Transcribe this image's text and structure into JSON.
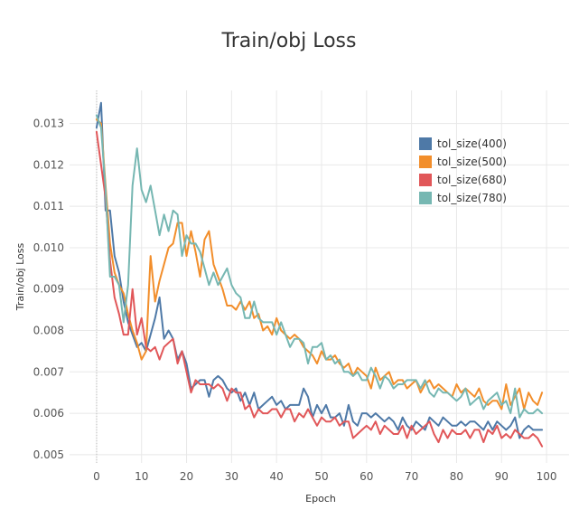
{
  "chart_data": {
    "type": "line",
    "title": "Train/obj Loss",
    "xlabel": "Epoch",
    "ylabel": "Train/obj Loss",
    "xlim": [
      -6,
      105
    ],
    "ylim": [
      0.0048,
      0.0138
    ],
    "xticks": [
      0,
      10,
      20,
      30,
      40,
      50,
      60,
      70,
      80,
      90,
      100
    ],
    "yticks": [
      0.005,
      0.006,
      0.007,
      0.008,
      0.009,
      0.01,
      0.011,
      0.012,
      0.013
    ],
    "ytick_labels": [
      "0.005",
      "0.006",
      "0.007",
      "0.008",
      "0.009",
      "0.010",
      "0.011",
      "0.012",
      "0.013"
    ],
    "grid": true,
    "legend_position": "top-right",
    "x": [
      0,
      1,
      2,
      3,
      4,
      5,
      6,
      7,
      8,
      9,
      10,
      11,
      12,
      13,
      14,
      15,
      16,
      17,
      18,
      19,
      20,
      21,
      22,
      23,
      24,
      25,
      26,
      27,
      28,
      29,
      30,
      31,
      32,
      33,
      34,
      35,
      36,
      37,
      38,
      39,
      40,
      41,
      42,
      43,
      44,
      45,
      46,
      47,
      48,
      49,
      50,
      51,
      52,
      53,
      54,
      55,
      56,
      57,
      58,
      59,
      60,
      61,
      62,
      63,
      64,
      65,
      66,
      67,
      68,
      69,
      70,
      71,
      72,
      73,
      74,
      75,
      76,
      77,
      78,
      79,
      80,
      81,
      82,
      83,
      84,
      85,
      86,
      87,
      88,
      89,
      90,
      91,
      92,
      93,
      94,
      95,
      96,
      97,
      98,
      99
    ],
    "series": [
      {
        "name": "tol_size(400)",
        "color": "#4e79a7",
        "values": [
          0.0129,
          0.0135,
          0.0109,
          0.0109,
          0.0098,
          0.0094,
          0.0087,
          0.0082,
          0.0079,
          0.0076,
          0.0077,
          0.0075,
          0.0079,
          0.0083,
          0.0088,
          0.0078,
          0.008,
          0.0078,
          0.0073,
          0.0075,
          0.0072,
          0.0066,
          0.0067,
          0.0068,
          0.0068,
          0.0064,
          0.0068,
          0.0069,
          0.0068,
          0.0066,
          0.0065,
          0.0066,
          0.0063,
          0.0065,
          0.0062,
          0.0065,
          0.0061,
          0.0062,
          0.0063,
          0.0064,
          0.0062,
          0.0063,
          0.0061,
          0.0062,
          0.0062,
          0.0062,
          0.0066,
          0.0064,
          0.0059,
          0.0062,
          0.006,
          0.0062,
          0.0059,
          0.0059,
          0.006,
          0.0057,
          0.0062,
          0.0058,
          0.0057,
          0.006,
          0.006,
          0.0059,
          0.006,
          0.0059,
          0.0058,
          0.0059,
          0.0058,
          0.0056,
          0.0059,
          0.0057,
          0.0056,
          0.0058,
          0.0057,
          0.0056,
          0.0059,
          0.0058,
          0.0057,
          0.0059,
          0.0058,
          0.0057,
          0.0057,
          0.0058,
          0.0057,
          0.0058,
          0.0058,
          0.0057,
          0.0056,
          0.0058,
          0.0056,
          0.0058,
          0.0057,
          0.0056,
          0.0057,
          0.0059,
          0.0054,
          0.0056,
          0.0057,
          0.0056,
          0.0056,
          0.0056
        ]
      },
      {
        "name": "tol_size(500)",
        "color": "#f28e2b",
        "values": [
          0.0131,
          0.013,
          0.0115,
          0.0101,
          0.0094,
          0.0091,
          0.0089,
          0.0084,
          0.008,
          0.0077,
          0.0073,
          0.0075,
          0.0098,
          0.0087,
          0.0092,
          0.0096,
          0.01,
          0.0101,
          0.0106,
          0.0106,
          0.0098,
          0.0104,
          0.0099,
          0.0093,
          0.0102,
          0.0104,
          0.0096,
          0.0093,
          0.009,
          0.0086,
          0.0086,
          0.0085,
          0.0087,
          0.0085,
          0.0087,
          0.0083,
          0.0084,
          0.008,
          0.0081,
          0.0079,
          0.0083,
          0.008,
          0.0079,
          0.0078,
          0.0079,
          0.0078,
          0.0076,
          0.0075,
          0.0074,
          0.0072,
          0.0075,
          0.0073,
          0.0073,
          0.0074,
          0.0072,
          0.0071,
          0.0072,
          0.0069,
          0.0071,
          0.007,
          0.0069,
          0.0066,
          0.0071,
          0.0068,
          0.0069,
          0.007,
          0.0067,
          0.0068,
          0.0068,
          0.0066,
          0.0067,
          0.0068,
          0.0065,
          0.0067,
          0.0068,
          0.0066,
          0.0067,
          0.0066,
          0.0065,
          0.0064,
          0.0067,
          0.0065,
          0.0066,
          0.0065,
          0.0064,
          0.0066,
          0.0063,
          0.0062,
          0.0063,
          0.0063,
          0.0061,
          0.0067,
          0.0062,
          0.0064,
          0.0066,
          0.0061,
          0.0065,
          0.0063,
          0.0062,
          0.0065
        ]
      },
      {
        "name": "tol_size(680)",
        "color": "#e15759",
        "values": [
          0.0128,
          0.012,
          0.0112,
          0.0097,
          0.0088,
          0.0084,
          0.0079,
          0.0079,
          0.009,
          0.0079,
          0.0083,
          0.0076,
          0.0075,
          0.0076,
          0.0073,
          0.0076,
          0.0077,
          0.0078,
          0.0072,
          0.0075,
          0.007,
          0.0065,
          0.0068,
          0.0067,
          0.0067,
          0.0067,
          0.0066,
          0.0067,
          0.0066,
          0.0063,
          0.0066,
          0.0065,
          0.0065,
          0.0061,
          0.0062,
          0.0059,
          0.0061,
          0.006,
          0.006,
          0.0061,
          0.0061,
          0.0059,
          0.0061,
          0.0061,
          0.0058,
          0.006,
          0.0059,
          0.0061,
          0.0059,
          0.0057,
          0.0059,
          0.0058,
          0.0058,
          0.0059,
          0.0057,
          0.0058,
          0.0058,
          0.0054,
          0.0055,
          0.0056,
          0.0057,
          0.0056,
          0.0058,
          0.0055,
          0.0057,
          0.0056,
          0.0055,
          0.0055,
          0.0057,
          0.0054,
          0.0057,
          0.0055,
          0.0056,
          0.0057,
          0.0058,
          0.0055,
          0.0053,
          0.0056,
          0.0054,
          0.0056,
          0.0055,
          0.0055,
          0.0056,
          0.0054,
          0.0056,
          0.0056,
          0.0053,
          0.0056,
          0.0055,
          0.0057,
          0.0054,
          0.0055,
          0.0054,
          0.0056,
          0.0055,
          0.0054,
          0.0054,
          0.0055,
          0.0054,
          0.0052
        ]
      },
      {
        "name": "tol_size(780)",
        "color": "#76b7b2",
        "values": [
          0.0132,
          0.0129,
          0.0114,
          0.0093,
          0.0093,
          0.0091,
          0.0082,
          0.0091,
          0.0115,
          0.0124,
          0.0114,
          0.0111,
          0.0115,
          0.0109,
          0.0103,
          0.0108,
          0.0104,
          0.0109,
          0.0108,
          0.0098,
          0.0103,
          0.0101,
          0.0101,
          0.0099,
          0.0095,
          0.0091,
          0.0094,
          0.0091,
          0.0093,
          0.0095,
          0.0091,
          0.0089,
          0.0088,
          0.0083,
          0.0083,
          0.0087,
          0.0083,
          0.0082,
          0.0082,
          0.0082,
          0.0079,
          0.0082,
          0.0079,
          0.0076,
          0.0078,
          0.0078,
          0.0077,
          0.0072,
          0.0076,
          0.0076,
          0.0077,
          0.0073,
          0.0074,
          0.0072,
          0.0073,
          0.007,
          0.007,
          0.0069,
          0.007,
          0.0068,
          0.0068,
          0.0071,
          0.0069,
          0.0066,
          0.0069,
          0.0068,
          0.0066,
          0.0067,
          0.0067,
          0.0068,
          0.0068,
          0.0068,
          0.0066,
          0.0068,
          0.0065,
          0.0064,
          0.0066,
          0.0065,
          0.0065,
          0.0064,
          0.0063,
          0.0064,
          0.0066,
          0.0062,
          0.0063,
          0.0064,
          0.0061,
          0.0063,
          0.0064,
          0.0065,
          0.0062,
          0.0063,
          0.006,
          0.0066,
          0.0059,
          0.0061,
          0.006,
          0.006,
          0.0061,
          0.006
        ]
      }
    ]
  }
}
